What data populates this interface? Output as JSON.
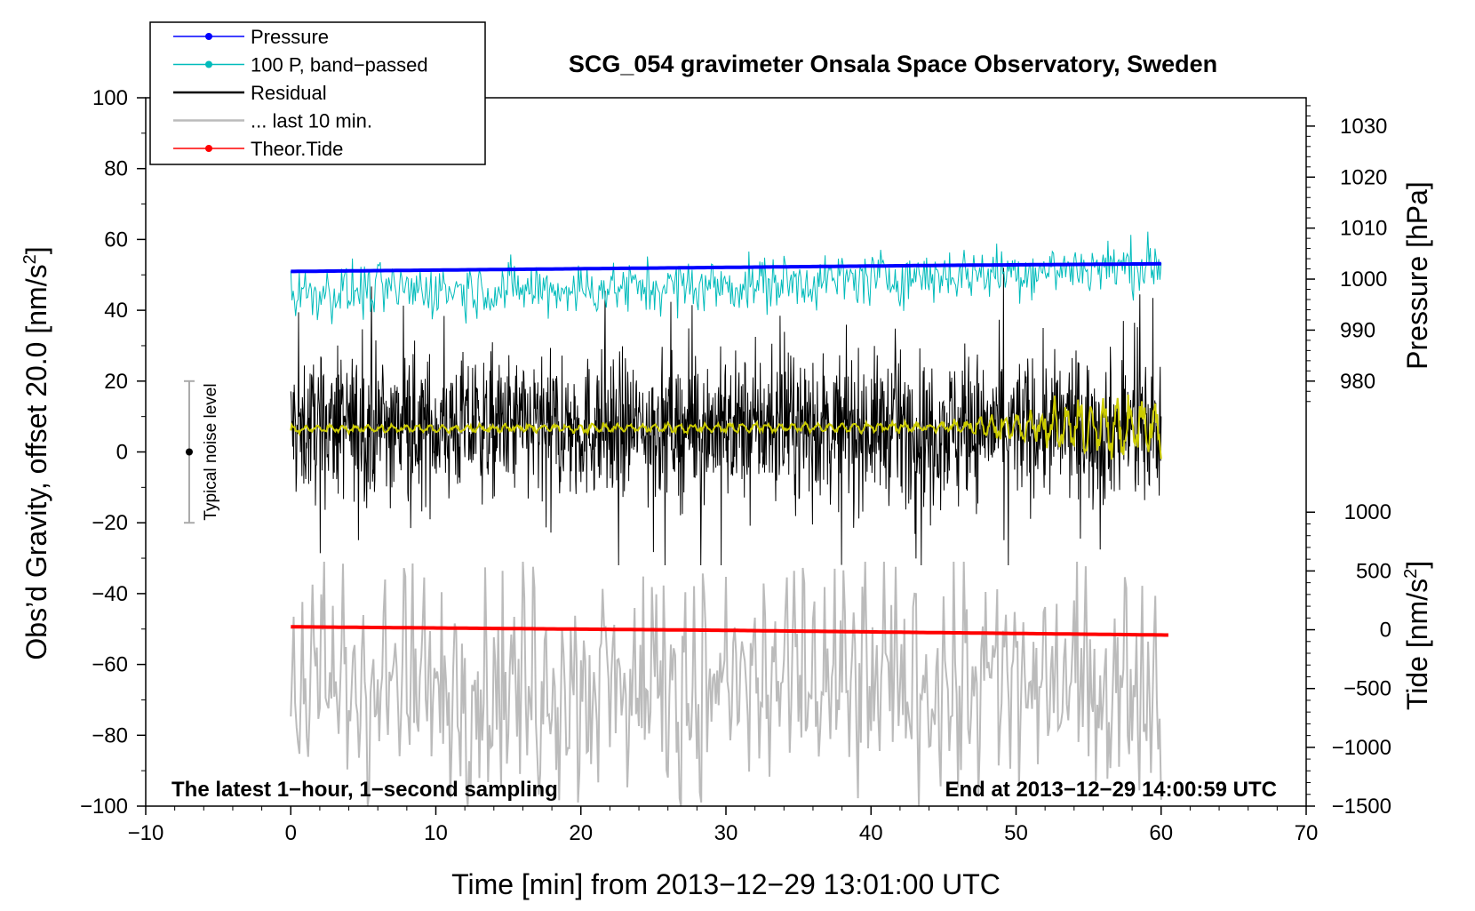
{
  "chart_data": {
    "type": "line",
    "title": "SCG_054 gravimeter Onsala Space Observatory, Sweden",
    "xlabel": "Time [min] from 2013−12−29 13:01:00 UTC",
    "ylabel_left_prefix": "Obs’d Gravity, offset 20.0 [nm/s",
    "ylabel_left_sup": "2",
    "ylabel_left_suffix": "]",
    "ylabel_right_pressure": "Pressure [hPa]",
    "ylabel_right_tide_prefix": "Tide [nm/s",
    "ylabel_right_tide_sup": "2",
    "ylabel_right_tide_suffix": "]",
    "xlim": [
      -10,
      70
    ],
    "ylim": [
      -100,
      100
    ],
    "x_ticks": [
      -10,
      0,
      10,
      20,
      30,
      40,
      50,
      60,
      70
    ],
    "x_tick_labels": [
      "−10",
      "0",
      "10",
      "20",
      "30",
      "40",
      "50",
      "60",
      "70"
    ],
    "y_ticks": [
      -100,
      -80,
      -60,
      -40,
      -20,
      0,
      20,
      40,
      60,
      80,
      100
    ],
    "y_tick_labels": [
      "−100",
      "−80",
      "−60",
      "−40",
      "−20",
      "0",
      "20",
      "40",
      "60",
      "80",
      "100"
    ],
    "pressure_axis": {
      "ticks": [
        980,
        990,
        1000,
        1010,
        1020,
        1030
      ],
      "tick_labels": [
        "980",
        "990",
        "1000",
        "1010",
        "1020",
        "1030"
      ],
      "gravity_at_980": 20,
      "gravity_at_1030": 92,
      "minor_step": 2
    },
    "tide_axis": {
      "ticks": [
        -1500,
        -1000,
        -500,
        0,
        500,
        1000
      ],
      "tick_labels": [
        "−1500",
        "−1000",
        "−500",
        "0",
        "500",
        "1000"
      ],
      "gravity_at_minus1500": -100,
      "gravity_at_1000": -17,
      "minor_step": 100
    },
    "grid": false,
    "legend_position": "top-left",
    "legend": [
      {
        "label": "Pressure",
        "color": "#0000ff",
        "marker": true
      },
      {
        "label": "100 P, band−passed",
        "color": "#00bbbb",
        "marker": true
      },
      {
        "label": "Residual",
        "color": "#000000",
        "marker": false
      },
      {
        "label": "... last 10 min.",
        "color": "#bbbbbb",
        "marker": false
      },
      {
        "label": "Theor.Tide",
        "color": "#ff0000",
        "marker": true
      }
    ],
    "annotation_left": "The latest 1−hour, 1−second sampling",
    "annotation_right": "End at 2013−12−29 14:00:59 UTC",
    "noise_indicator": {
      "label": "Typical noise level",
      "x": -7,
      "center": 0,
      "low": -20,
      "high": 20
    },
    "series": [
      {
        "name": "Pressure",
        "unit": "hPa",
        "color": "#0000ff",
        "x": [
          0,
          15,
          30,
          45,
          60
        ],
        "values": [
          1001.5,
          1001.9,
          1002.3,
          1002.7,
          1003.0
        ]
      },
      {
        "name": "100 P, band-passed",
        "unit": "gravity axis",
        "color": "#00bbbb",
        "x": [
          0,
          10,
          20,
          30,
          40,
          50,
          60
        ],
        "values": [
          45,
          46,
          46,
          47,
          49,
          51,
          53
        ],
        "envelope": 7
      },
      {
        "name": "Residual",
        "unit": "gravity axis",
        "color": "#000000",
        "x": [
          0,
          60
        ],
        "values": [
          7,
          7
        ],
        "envelope": 22
      },
      {
        "name": "Residual smoothed",
        "unit": "gravity axis",
        "color": "#cccc00",
        "x": [
          0,
          45,
          50,
          55,
          60
        ],
        "values": [
          6.5,
          7,
          7,
          7,
          7
        ],
        "envelope": [
          1,
          1.5,
          4,
          8,
          8
        ]
      },
      {
        "name": "... last 10 min.",
        "unit": "gravity axis",
        "color": "#bbbbbb",
        "x": [
          0,
          60
        ],
        "values": [
          -70,
          -70
        ],
        "range": [
          -100,
          -31
        ]
      },
      {
        "name": "Theor.Tide",
        "unit": "nm/s2",
        "color": "#ff0000",
        "x": [
          0,
          15,
          30,
          45,
          60.5
        ],
        "values": [
          25,
          10,
          -5,
          -25,
          -45
        ]
      }
    ]
  }
}
